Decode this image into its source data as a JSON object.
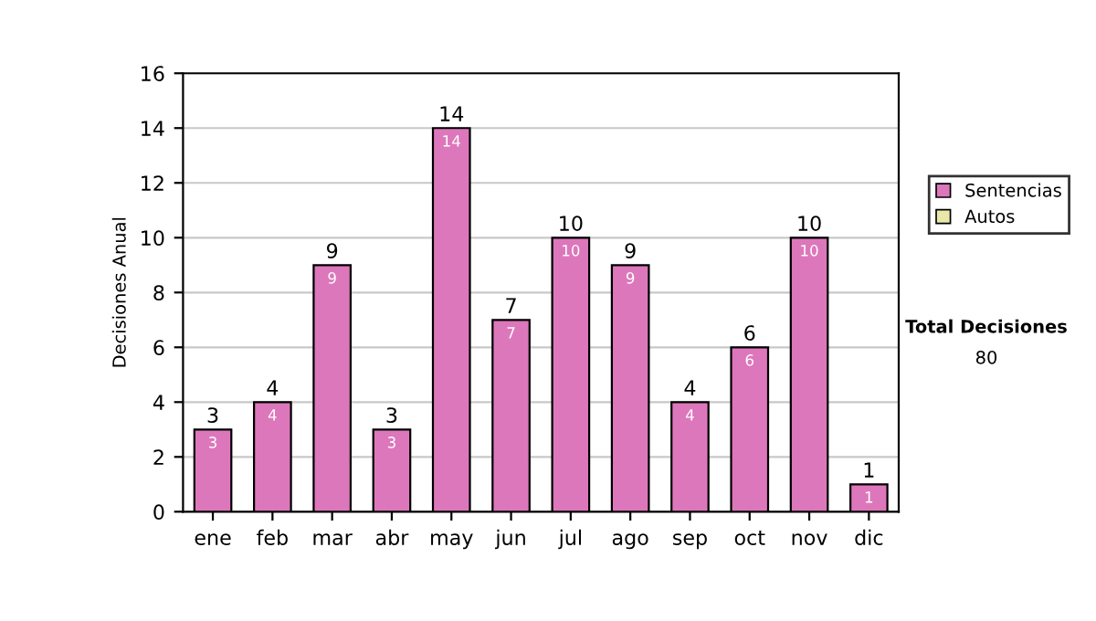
{
  "chart_data": {
    "type": "bar",
    "stacked": true,
    "ylabel": "Decisiones Anual",
    "categories": [
      "ene",
      "feb",
      "mar",
      "abr",
      "may",
      "jun",
      "jul",
      "ago",
      "sep",
      "oct",
      "nov",
      "dic"
    ],
    "series": [
      {
        "name": "Sentencias",
        "color": "#dd77bb",
        "values": [
          3,
          4,
          9,
          3,
          14,
          7,
          10,
          9,
          4,
          6,
          10,
          1
        ],
        "value_labels": [
          "3",
          "4",
          "9",
          "3",
          "14",
          "7",
          "10",
          "9",
          "4",
          "6",
          "10",
          "1"
        ]
      },
      {
        "name": "Autos",
        "color": "#e8e8a8",
        "values": [
          0,
          0,
          0,
          0,
          0,
          0,
          0,
          0,
          0,
          0,
          0,
          0
        ]
      }
    ],
    "totals": [
      "3",
      "4",
      "9",
      "3",
      "14",
      "7",
      "10",
      "9",
      "4",
      "6",
      "10",
      "1"
    ],
    "ylim": [
      0,
      16
    ],
    "yticks": [
      0,
      2,
      4,
      6,
      8,
      10,
      12,
      14,
      16
    ],
    "grid": "y",
    "legend": "right",
    "annotations": [
      "Total Decisiones",
      "80"
    ]
  }
}
